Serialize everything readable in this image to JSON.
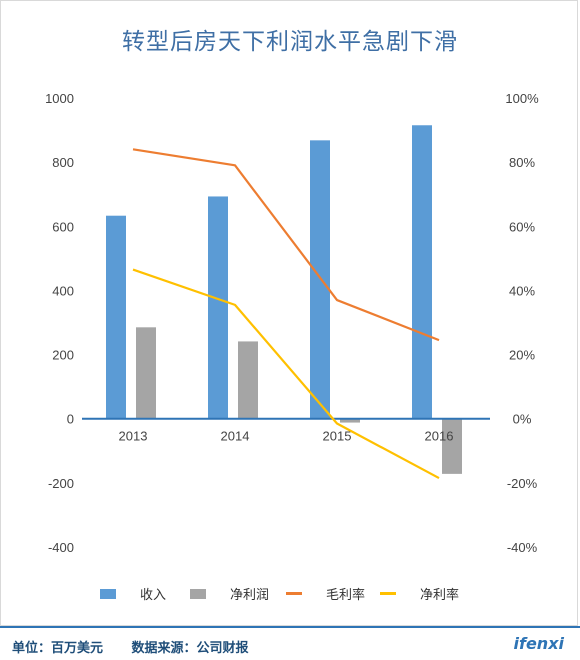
{
  "chart_data": {
    "type": "bar",
    "title": "转型后房天下利润水平急剧下滑",
    "categories": [
      "2013",
      "2014",
      "2015",
      "2016"
    ],
    "series": [
      {
        "name": "收入",
        "kind": "bar",
        "axis": "left",
        "color": "#5b9bd5",
        "values": [
          633,
          693,
          868,
          915
        ]
      },
      {
        "name": "净利润",
        "kind": "bar",
        "axis": "left",
        "color": "#a5a5a5",
        "values": [
          285,
          241,
          -12,
          -172
        ]
      },
      {
        "name": "毛利率",
        "kind": "line",
        "axis": "right",
        "color": "#ed7d31",
        "values": [
          0.84,
          0.79,
          0.37,
          0.245
        ]
      },
      {
        "name": "净利率",
        "kind": "line",
        "axis": "right",
        "color": "#ffc000",
        "values": [
          0.465,
          0.355,
          -0.015,
          -0.185
        ]
      }
    ],
    "y_left": {
      "range": [
        -400,
        1000
      ],
      "ticks": [
        "1000",
        "800",
        "600",
        "400",
        "200",
        "0",
        "-200",
        "-400"
      ],
      "tick_values": [
        1000,
        800,
        600,
        400,
        200,
        0,
        -200,
        -400
      ]
    },
    "y_right": {
      "range": [
        -0.4,
        1.0
      ],
      "ticks": [
        "100%",
        "80%",
        "60%",
        "40%",
        "20%",
        "0%",
        "-20%",
        "-40%"
      ]
    },
    "legend_position": "bottom",
    "grid": false
  },
  "footer": {
    "unit": "单位：百万美元",
    "source": "数据来源：公司财报",
    "logo": "ifenxi"
  }
}
